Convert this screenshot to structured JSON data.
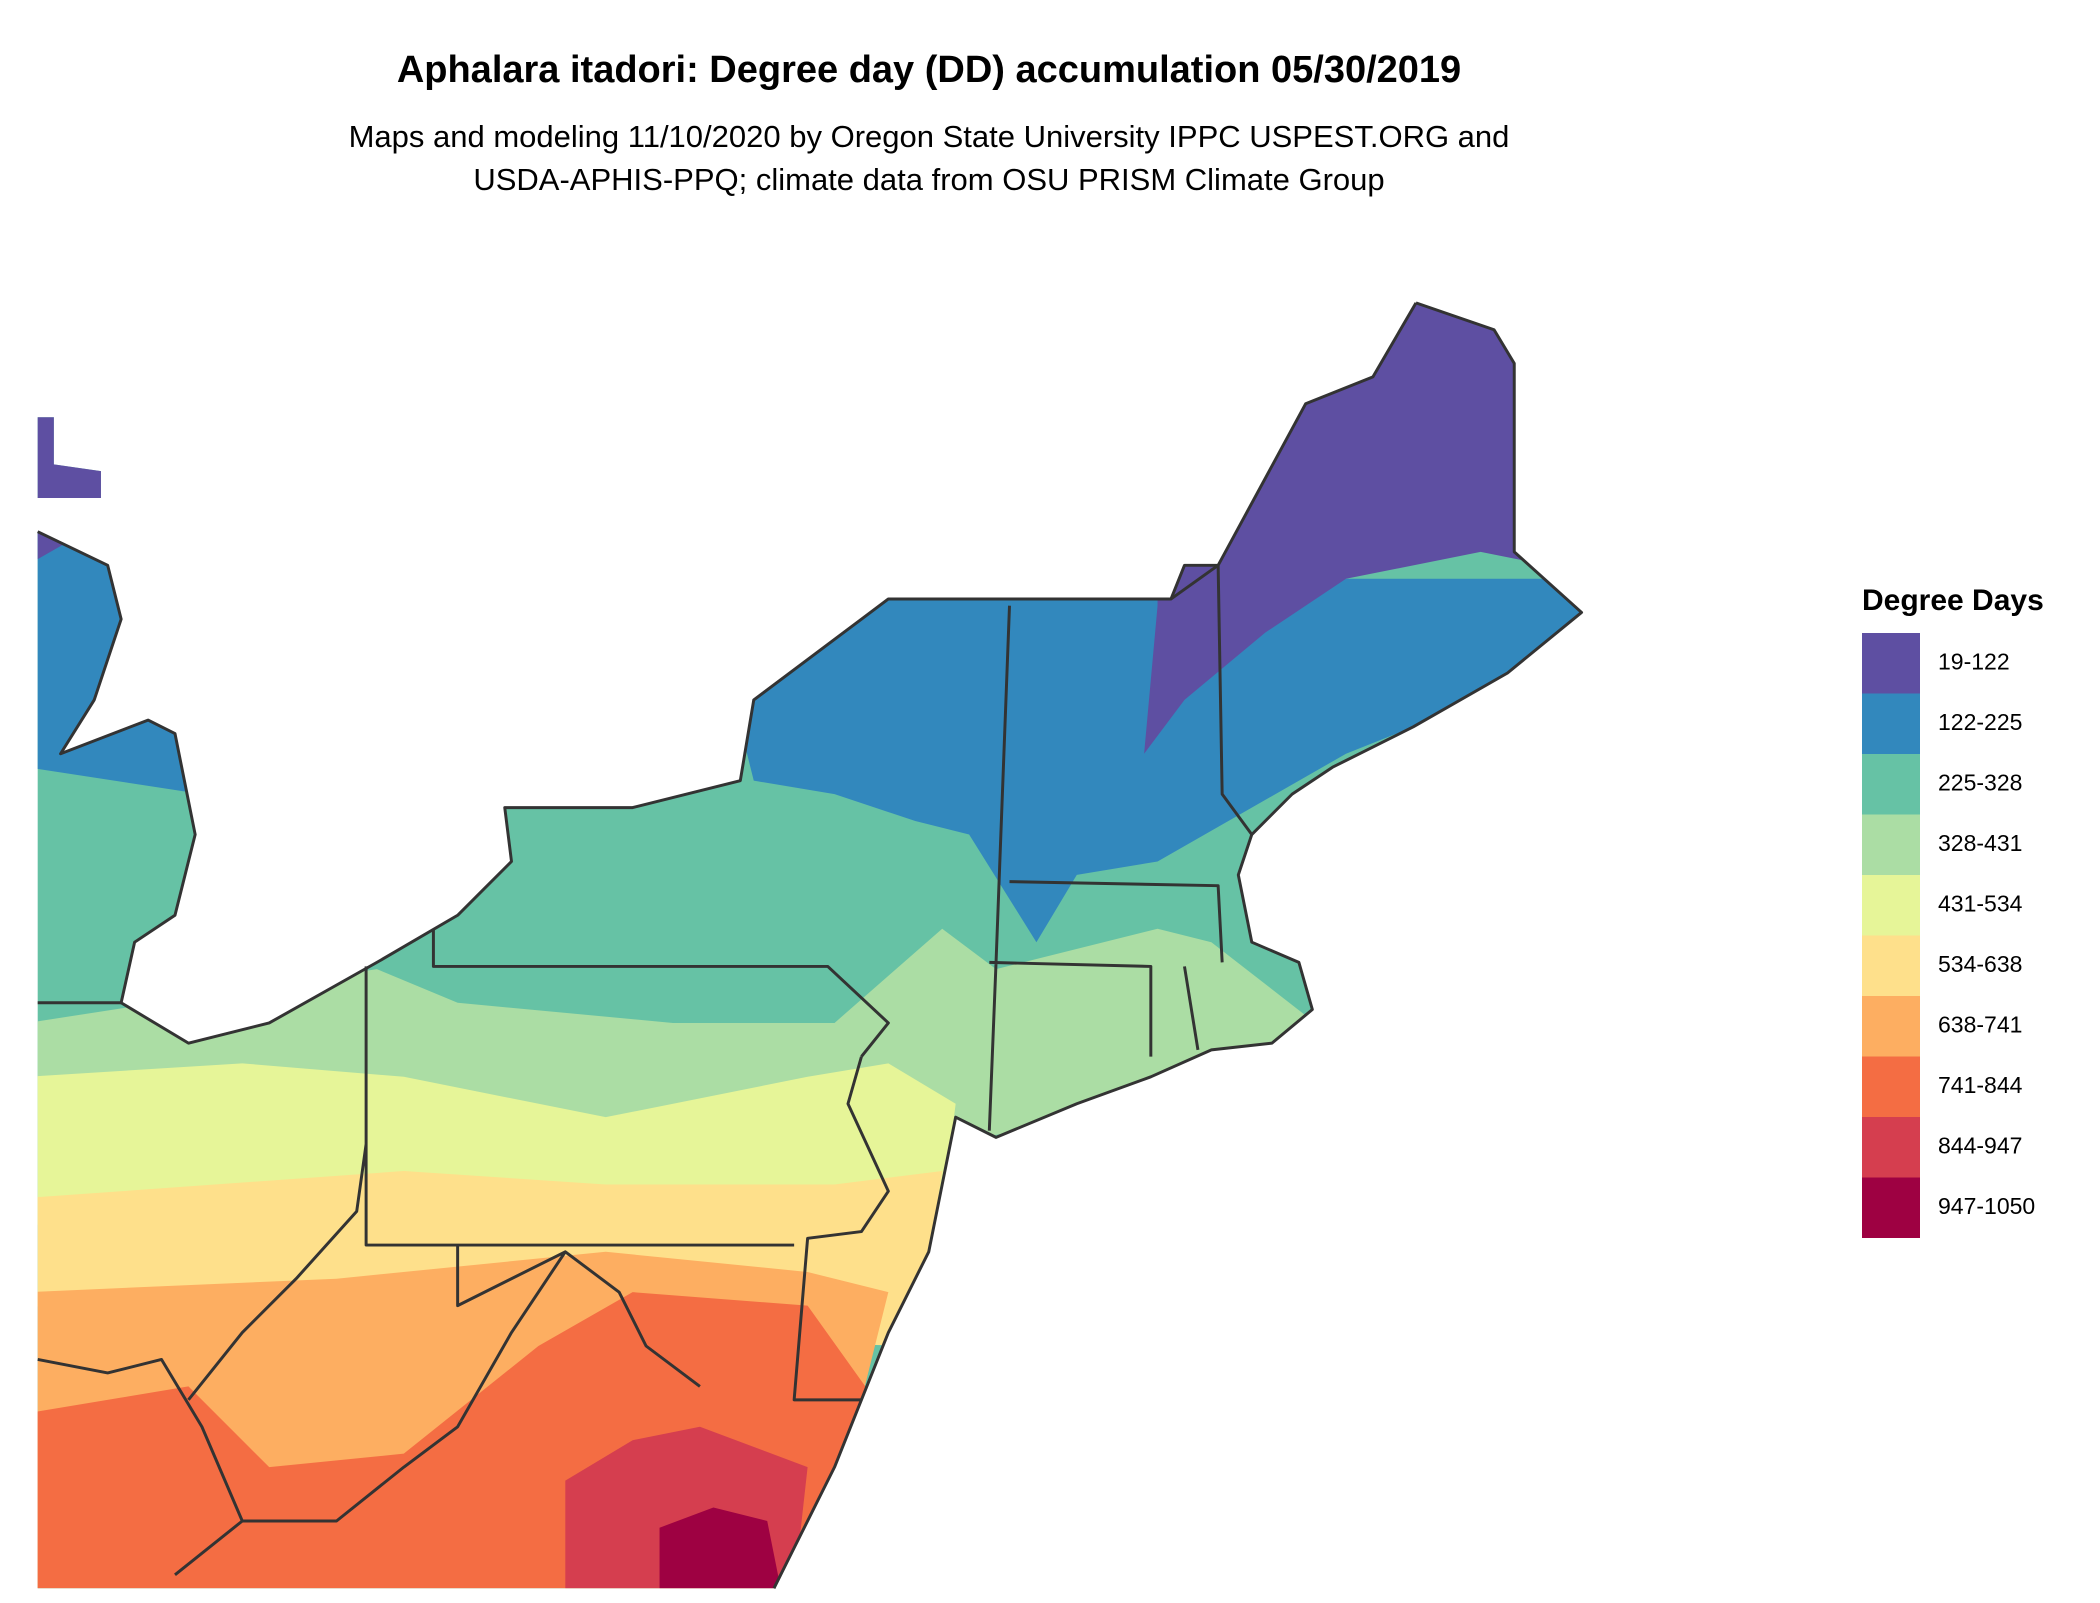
{
  "title": "Aphalara itadori: Degree day (DD) accumulation 05/30/2019",
  "subtitle": [
    "Maps and modeling 11/10/2020 by Oregon State University IPPC USPEST.ORG and",
    "USDA-APHIS-PPQ; climate data from OSU PRISM Climate Group"
  ],
  "legend": {
    "title": "Degree Days",
    "items": [
      {
        "label": "19-122",
        "color": "#5e4fa2"
      },
      {
        "label": "122-225",
        "color": "#3288bd"
      },
      {
        "label": "225-328",
        "color": "#66c2a5"
      },
      {
        "label": "328-431",
        "color": "#abdda4"
      },
      {
        "label": "431-534",
        "color": "#e6f598"
      },
      {
        "label": "534-638",
        "color": "#fee08b"
      },
      {
        "label": "638-741",
        "color": "#fdae61"
      },
      {
        "label": "741-844",
        "color": "#f46d43"
      },
      {
        "label": "844-947",
        "color": "#d53e4f"
      },
      {
        "label": "947-1050",
        "color": "#9e0142"
      }
    ]
  }
}
